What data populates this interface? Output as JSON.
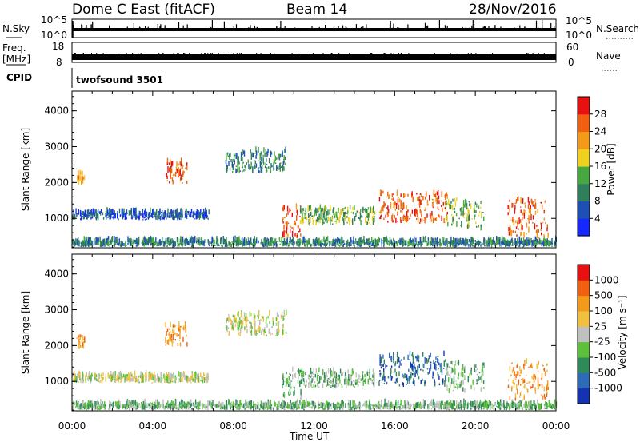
{
  "header": {
    "station": "Dome C East (fitACF)",
    "beam": "Beam 14",
    "date": "28/Nov/2016"
  },
  "noise_panel": {
    "left_label": "N.Sky",
    "right_label": "N.Search",
    "left_ticks": [
      "10^5",
      "10^0"
    ],
    "right_ticks": [
      "10^5",
      "10^0"
    ]
  },
  "freq_panel": {
    "left_label_1": "Freq.",
    "left_label_2": "[MHz]",
    "left_ticks": [
      "18",
      "8"
    ],
    "right_label": "Nave",
    "right_ticks": [
      "60",
      "0"
    ]
  },
  "cpid_panel": {
    "label": "CPID",
    "program": "twofsound 3501"
  },
  "x_axis": {
    "label": "Time UT",
    "tick_labels": [
      "00:00",
      "04:00",
      "08:00",
      "12:00",
      "16:00",
      "20:00",
      "00:00"
    ]
  },
  "chart_data": [
    {
      "type": "heatmap",
      "title": "",
      "ylabel": "Slant Range [km]",
      "xlabel": "Time UT",
      "xlim_hours": [
        0,
        24
      ],
      "ylim_km": [
        180,
        4550
      ],
      "y_ticks": [
        "1000",
        "2000",
        "3000",
        "4000"
      ],
      "colorbar": {
        "label": "Power [dB]",
        "ticks": [
          "4",
          "8",
          "12",
          "16",
          "20",
          "24",
          "28"
        ],
        "colors": [
          "#1428ff",
          "#1e4fb4",
          "#2f7f5c",
          "#46a83e",
          "#f0d020",
          "#f39a1a",
          "#f06010",
          "#e81010"
        ]
      },
      "scatter_regions": [
        {
          "t0": 0.2,
          "t1": 0.6,
          "r0": 1900,
          "r1": 2250,
          "level": 5
        },
        {
          "t0": 4.6,
          "t1": 5.7,
          "r0": 1950,
          "r1": 2550,
          "level": 6
        },
        {
          "t0": 7.6,
          "t1": 10.6,
          "r0": 2250,
          "r1": 2850,
          "level": 2
        },
        {
          "t0": 0.0,
          "t1": 6.8,
          "r0": 950,
          "r1": 1150,
          "level": 1
        },
        {
          "t0": 0.0,
          "t1": 24.0,
          "r0": 200,
          "r1": 350,
          "level": 2
        },
        {
          "t0": 10.4,
          "t1": 11.4,
          "r0": 450,
          "r1": 1300,
          "level": 6
        },
        {
          "t0": 11.3,
          "t1": 15.0,
          "r0": 800,
          "r1": 1250,
          "level": 3
        },
        {
          "t0": 15.2,
          "t1": 18.6,
          "r0": 850,
          "r1": 1700,
          "level": 6
        },
        {
          "t0": 18.5,
          "t1": 20.4,
          "r0": 650,
          "r1": 1500,
          "level": 3
        },
        {
          "t0": 21.6,
          "t1": 23.6,
          "r0": 450,
          "r1": 1500,
          "level": 6
        }
      ]
    },
    {
      "type": "heatmap",
      "title": "",
      "ylabel": "Slant Range [km]",
      "xlabel": "Time UT",
      "xlim_hours": [
        0,
        24
      ],
      "ylim_km": [
        180,
        4550
      ],
      "y_ticks": [
        "1000",
        "2000",
        "3000",
        "4000"
      ],
      "colorbar": {
        "label": "Velocity [m s⁻¹]",
        "ticks": [
          "1000",
          "500",
          "100",
          "25",
          "-25",
          "-100",
          "-500",
          "-1000"
        ],
        "colors": [
          "#1433b4",
          "#2d6ab8",
          "#2f8a5a",
          "#5cc03a",
          "#c0c0c0",
          "#f2c040",
          "#f39a1a",
          "#f06010",
          "#e81010"
        ]
      },
      "scatter_regions": [
        {
          "t0": 0.2,
          "t1": 0.6,
          "r0": 1900,
          "r1": 2250,
          "level": 6
        },
        {
          "t0": 4.6,
          "t1": 5.7,
          "r0": 1950,
          "r1": 2550,
          "level": 6
        },
        {
          "t0": 7.6,
          "t1": 10.6,
          "r0": 2250,
          "r1": 2850,
          "level": 4
        },
        {
          "t0": 0.0,
          "t1": 6.8,
          "r0": 950,
          "r1": 1150,
          "level": 4
        },
        {
          "t0": 0.0,
          "t1": 24.0,
          "r0": 200,
          "r1": 350,
          "level": 3
        },
        {
          "t0": 10.4,
          "t1": 11.4,
          "r0": 450,
          "r1": 1300,
          "level": 3
        },
        {
          "t0": 11.3,
          "t1": 15.0,
          "r0": 800,
          "r1": 1250,
          "level": 3
        },
        {
          "t0": 15.2,
          "t1": 18.6,
          "r0": 850,
          "r1": 1700,
          "level": 1
        },
        {
          "t0": 18.5,
          "t1": 20.4,
          "r0": 650,
          "r1": 1500,
          "level": 3
        },
        {
          "t0": 21.6,
          "t1": 23.6,
          "r0": 450,
          "r1": 1500,
          "level": 6
        }
      ]
    }
  ]
}
